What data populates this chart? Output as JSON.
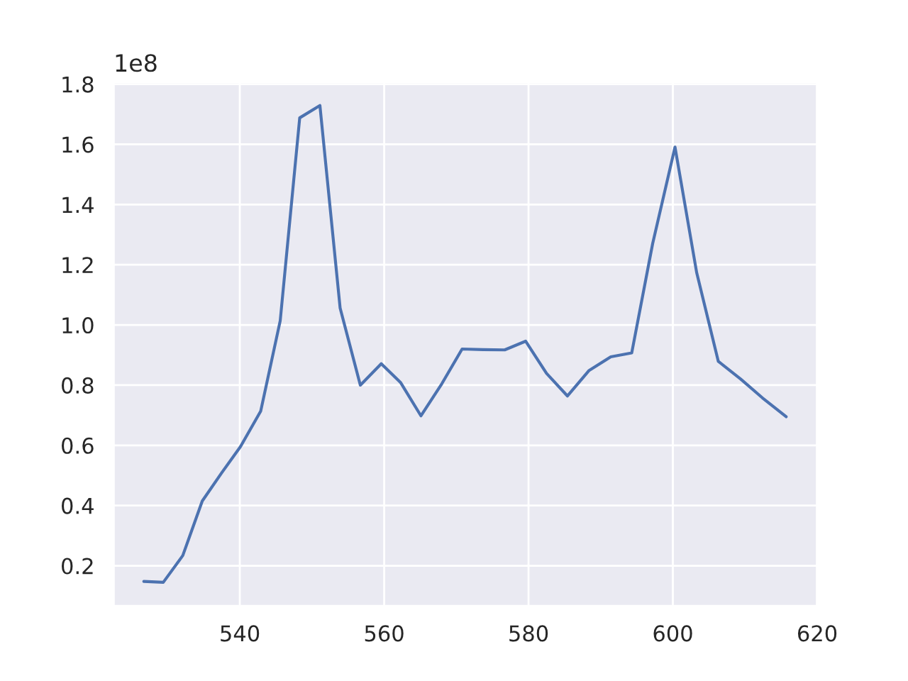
{
  "chart_data": {
    "type": "line",
    "x": [
      526.7,
      529.4,
      532.1,
      534.8,
      537.5,
      540.1,
      542.9,
      545.6,
      548.3,
      551.1,
      553.9,
      556.7,
      559.6,
      562.3,
      565.1,
      568.0,
      570.8,
      573.7,
      576.7,
      579.6,
      582.5,
      585.4,
      588.4,
      591.4,
      594.3,
      597.2,
      600.3,
      603.3,
      606.3,
      609.4,
      612.4,
      615.7
    ],
    "series": [
      {
        "color": "#4c72b0",
        "values": [
          0.148,
          0.145,
          0.234,
          0.415,
          0.509,
          0.596,
          0.714,
          1.014,
          1.688,
          1.729,
          1.056,
          0.8,
          0.871,
          0.808,
          0.698,
          0.805,
          0.92,
          0.918,
          0.917,
          0.946,
          0.839,
          0.764,
          0.849,
          0.894,
          0.907,
          1.27,
          1.591,
          1.174,
          0.879,
          0.82,
          0.758,
          0.695
        ]
      }
    ],
    "xlim": [
      522.5,
      620
    ],
    "xticks": [
      540,
      560,
      580,
      600,
      620
    ],
    "ylim": [
      0.066,
      1.808
    ],
    "yticks": [
      {
        "value": 0.2,
        "label": "0.2"
      },
      {
        "value": 0.4,
        "label": "0.4"
      },
      {
        "value": 0.6,
        "label": "0.6"
      },
      {
        "value": 0.8,
        "label": "0.8"
      },
      {
        "value": 1.0,
        "label": "1.0"
      },
      {
        "value": 1.2,
        "label": "1.2"
      },
      {
        "value": 1.4,
        "label": "1.4"
      },
      {
        "value": 1.6,
        "label": "1.6"
      },
      {
        "value": 1.8,
        "label": "1.8"
      }
    ],
    "annotations": [
      "1e8"
    ],
    "grid": true,
    "legend": false
  }
}
